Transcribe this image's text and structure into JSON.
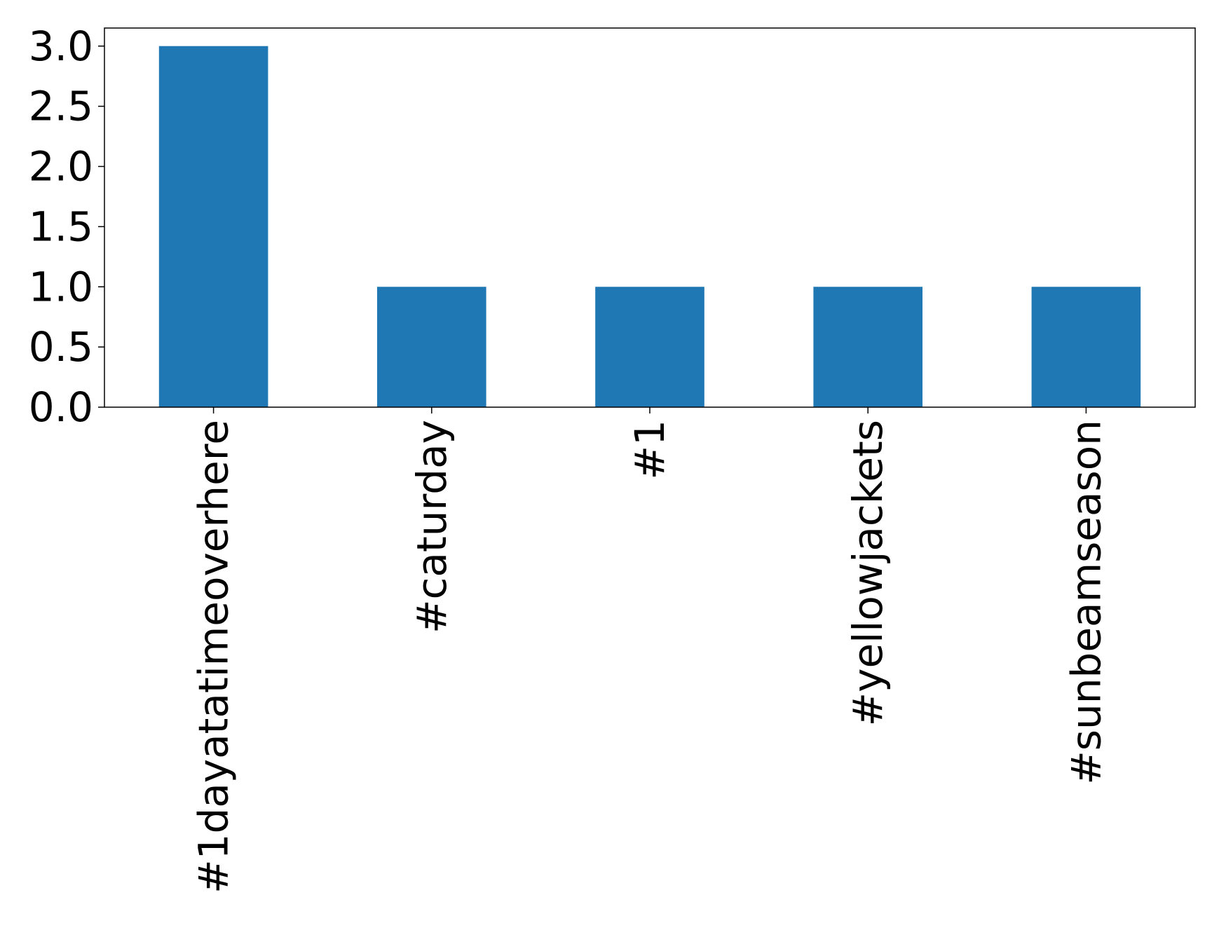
{
  "chart_data": {
    "type": "bar",
    "categories": [
      "#1dayatatimeoverhere",
      "#caturday",
      "#1",
      "#yellowjackets",
      "#sunbeamseason"
    ],
    "values": [
      3,
      1,
      1,
      1,
      1
    ],
    "title": "",
    "xlabel": "",
    "ylabel": "",
    "ylim": [
      0,
      3.15
    ],
    "yticks": [
      0.0,
      0.5,
      1.0,
      1.5,
      2.0,
      2.5,
      3.0
    ],
    "ytick_labels": [
      "0.0",
      "0.5",
      "1.0",
      "1.5",
      "2.0",
      "2.5",
      "3.0"
    ],
    "xtick_rotation": "vertical",
    "grid": false,
    "legend": "none",
    "bar_color": "#1f77b4"
  }
}
